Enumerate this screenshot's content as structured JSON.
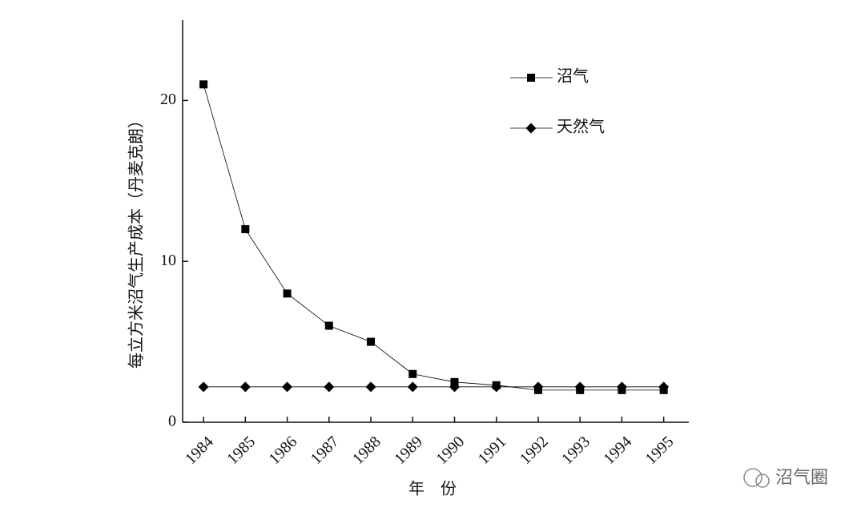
{
  "chart_data": {
    "type": "line",
    "x_label": "年　份",
    "y_label": "每立方米沼气生产成本（丹麦克朗）",
    "x": [
      1984,
      1985,
      1986,
      1987,
      1988,
      1989,
      1990,
      1991,
      1992,
      1993,
      1994,
      1995
    ],
    "series": [
      {
        "name": "沼气",
        "color": "#000000",
        "marker": "square",
        "values": [
          21,
          12,
          8,
          6,
          5,
          3,
          2.5,
          2.3,
          2,
          2,
          2,
          2
        ]
      },
      {
        "name": "天然气",
        "color": "#000000",
        "marker": "diamond",
        "values": [
          2.2,
          2.2,
          2.2,
          2.2,
          2.2,
          2.2,
          2.2,
          2.2,
          2.2,
          2.2,
          2.2,
          2.2
        ]
      }
    ],
    "xlim": [
      1983.5,
      1995.6
    ],
    "xticks": [
      1984,
      1985,
      1986,
      1987,
      1988,
      1989,
      1990,
      1991,
      1992,
      1993,
      1994,
      1995
    ],
    "ylim": [
      0,
      25
    ],
    "yticks": [
      0,
      10,
      20
    ],
    "legend": "upper-right",
    "watermark": "沼气圈"
  }
}
